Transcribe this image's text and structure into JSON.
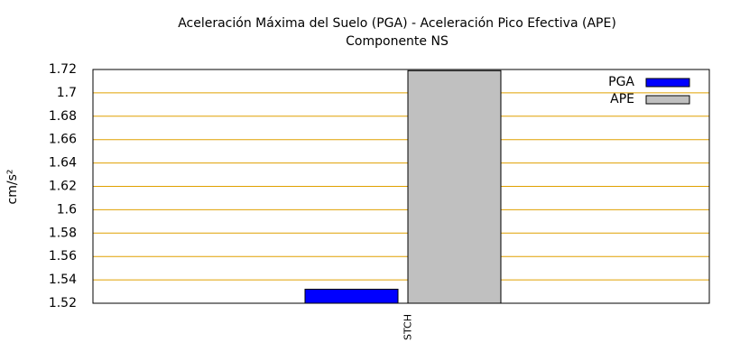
{
  "chart_data": {
    "type": "bar",
    "title": "Aceleración Máxima del Suelo (PGA) -  Aceleración Pico Efectiva (APE)",
    "subtitle": "Componente NS",
    "y_label": "cm/s²",
    "categories": [
      "STCH"
    ],
    "series": [
      {
        "name": "PGA",
        "color": "#0000ff",
        "values": [
          1.532
        ]
      },
      {
        "name": "APE",
        "color": "#c0c0c0",
        "values": [
          1.719
        ]
      }
    ],
    "ylim": [
      1.52,
      1.72
    ],
    "yticks": [
      1.52,
      1.54,
      1.56,
      1.58,
      1.6,
      1.62,
      1.64,
      1.66,
      1.68,
      1.7,
      1.72
    ],
    "grid": true,
    "grid_color": "#e0a000",
    "legend": "top-right"
  }
}
